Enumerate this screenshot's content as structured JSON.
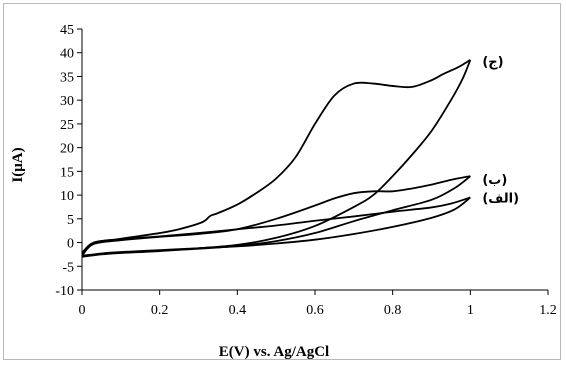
{
  "chart_data": {
    "type": "line",
    "title": "",
    "xlabel": "E(V) vs. Ag/AgCl",
    "ylabel": "I(μA)",
    "xlim": [
      0,
      1.2
    ],
    "ylim": [
      -10,
      45
    ],
    "x_ticks": [
      0,
      0.2,
      0.4,
      0.6,
      0.8,
      1,
      1.2
    ],
    "y_ticks": [
      -10,
      -5,
      0,
      5,
      10,
      15,
      20,
      25,
      30,
      35,
      40,
      45
    ],
    "x_tick_labels": [
      "0",
      "0.2",
      "0.4",
      "0.6",
      "0.8",
      "1",
      "1.2"
    ],
    "y_tick_labels": [
      "-10",
      "-5",
      "0",
      "5",
      "10",
      "15",
      "20",
      "25",
      "30",
      "35",
      "40",
      "45"
    ],
    "grid": false,
    "legend": "none",
    "series": [
      {
        "name": "(الف)",
        "label": "(الف)",
        "label_at": [
          1.0,
          9.5
        ],
        "forward": [
          [
            0,
            -2.8
          ],
          [
            0.05,
            -2.3
          ],
          [
            0.1,
            -2.0
          ],
          [
            0.2,
            -1.6
          ],
          [
            0.3,
            -1.2
          ],
          [
            0.4,
            -0.8
          ],
          [
            0.5,
            -0.2
          ],
          [
            0.6,
            0.6
          ],
          [
            0.7,
            1.8
          ],
          [
            0.8,
            3.3
          ],
          [
            0.9,
            5.2
          ],
          [
            0.96,
            7.0
          ],
          [
            1.0,
            9.5
          ]
        ],
        "reverse": [
          [
            1.0,
            9.5
          ],
          [
            0.95,
            8.2
          ],
          [
            0.9,
            7.4
          ],
          [
            0.8,
            6.5
          ],
          [
            0.7,
            5.5
          ],
          [
            0.6,
            4.6
          ],
          [
            0.5,
            3.6
          ],
          [
            0.4,
            2.8
          ],
          [
            0.3,
            2.0
          ],
          [
            0.2,
            1.3
          ],
          [
            0.1,
            0.7
          ],
          [
            0.03,
            0
          ],
          [
            0,
            -2.2
          ]
        ]
      },
      {
        "name": "(ب)",
        "label": "(ب)",
        "label_at": [
          1.0,
          14.0
        ],
        "forward": [
          [
            0,
            -2.8
          ],
          [
            0.05,
            -2.4
          ],
          [
            0.1,
            -2.1
          ],
          [
            0.2,
            -1.7
          ],
          [
            0.3,
            -1.3
          ],
          [
            0.4,
            -0.7
          ],
          [
            0.5,
            0.3
          ],
          [
            0.6,
            2.0
          ],
          [
            0.7,
            4.5
          ],
          [
            0.8,
            6.8
          ],
          [
            0.9,
            9.0
          ],
          [
            0.96,
            11.5
          ],
          [
            1.0,
            14.0
          ]
        ],
        "reverse": [
          [
            1.0,
            14.0
          ],
          [
            0.95,
            13.2
          ],
          [
            0.9,
            12.2
          ],
          [
            0.85,
            11.4
          ],
          [
            0.8,
            10.8
          ],
          [
            0.75,
            10.8
          ],
          [
            0.7,
            10.4
          ],
          [
            0.65,
            9.3
          ],
          [
            0.6,
            7.8
          ],
          [
            0.5,
            5.0
          ],
          [
            0.4,
            2.8
          ],
          [
            0.3,
            1.8
          ],
          [
            0.2,
            1.2
          ],
          [
            0.1,
            0.5
          ],
          [
            0.03,
            -0.3
          ],
          [
            0,
            -2.5
          ]
        ]
      },
      {
        "name": "(ج)",
        "label": "(ج)",
        "label_at": [
          1.0,
          38.5
        ],
        "forward": [
          [
            0,
            -3.0
          ],
          [
            0.05,
            -2.5
          ],
          [
            0.1,
            -2.2
          ],
          [
            0.2,
            -1.8
          ],
          [
            0.3,
            -1.2
          ],
          [
            0.4,
            -0.5
          ],
          [
            0.5,
            1.0
          ],
          [
            0.6,
            3.5
          ],
          [
            0.7,
            7.5
          ],
          [
            0.75,
            10.0
          ],
          [
            0.8,
            14.0
          ],
          [
            0.85,
            18.5
          ],
          [
            0.9,
            23.5
          ],
          [
            0.95,
            30.0
          ],
          [
            0.98,
            34.5
          ],
          [
            1.0,
            38.5
          ]
        ],
        "reverse": [
          [
            1.0,
            38.5
          ],
          [
            0.97,
            37.0
          ],
          [
            0.93,
            35.5
          ],
          [
            0.9,
            34.2
          ],
          [
            0.85,
            32.8
          ],
          [
            0.8,
            33.0
          ],
          [
            0.75,
            33.5
          ],
          [
            0.7,
            33.5
          ],
          [
            0.65,
            31.0
          ],
          [
            0.6,
            25.0
          ],
          [
            0.55,
            18.0
          ],
          [
            0.5,
            13.5
          ],
          [
            0.45,
            10.5
          ],
          [
            0.4,
            8.0
          ],
          [
            0.35,
            6.2
          ],
          [
            0.33,
            5.6
          ],
          [
            0.31,
            4.3
          ],
          [
            0.25,
            2.8
          ],
          [
            0.2,
            2.0
          ],
          [
            0.1,
            0.8
          ],
          [
            0.03,
            -0.2
          ],
          [
            0,
            -2.8
          ]
        ]
      }
    ]
  }
}
